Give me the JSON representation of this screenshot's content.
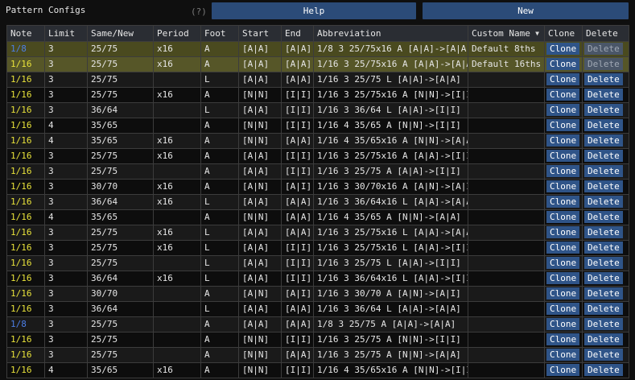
{
  "header": {
    "title": "Pattern Configs",
    "help_hint": "(?)",
    "help_label": "Help",
    "new_label": "New"
  },
  "table": {
    "columns": [
      "Note",
      "Limit",
      "Same/New",
      "Period",
      "Foot",
      "Start",
      "End",
      "Abbreviation",
      "Custom Name",
      "Clone",
      "Delete"
    ],
    "sort_icon": "sort-descending-triangle",
    "colors": {
      "note_yellow": "#e8e23a",
      "note_blue": "#4d7fe6",
      "default_row_highlight": "#4a4a1f",
      "button_bg": "#2f5488"
    },
    "rows": [
      {
        "note": "1/8",
        "limit": "3",
        "same_new": "25/75",
        "period": "x16",
        "foot": "A",
        "start": "[A|A]",
        "end": "[A|A]",
        "abbreviation": "1/8 3 25/75x16 A [A|A]->[A|A]",
        "custom_name": "Default 8ths",
        "clone": "Clone",
        "delete": "Delete",
        "is_default": true
      },
      {
        "note": "1/16",
        "limit": "3",
        "same_new": "25/75",
        "period": "x16",
        "foot": "A",
        "start": "[A|A]",
        "end": "[A|A]",
        "abbreviation": "1/16 3 25/75x16 A [A|A]->[A|A]",
        "custom_name": "Default 16ths",
        "clone": "Clone",
        "delete": "Delete",
        "is_default": true
      },
      {
        "note": "1/16",
        "limit": "3",
        "same_new": "25/75",
        "period": "",
        "foot": "L",
        "start": "[A|A]",
        "end": "[A|A]",
        "abbreviation": "1/16 3 25/75 L [A|A]->[A|A]",
        "custom_name": "",
        "clone": "Clone",
        "delete": "Delete"
      },
      {
        "note": "1/16",
        "limit": "3",
        "same_new": "25/75",
        "period": "x16",
        "foot": "A",
        "start": "[N|N]",
        "end": "[I|I]",
        "abbreviation": "1/16 3 25/75x16 A [N|N]->[I|I]",
        "custom_name": "",
        "clone": "Clone",
        "delete": "Delete"
      },
      {
        "note": "1/16",
        "limit": "3",
        "same_new": "36/64",
        "period": "",
        "foot": "L",
        "start": "[A|A]",
        "end": "[I|I]",
        "abbreviation": "1/16 3 36/64 L [A|A]->[I|I]",
        "custom_name": "",
        "clone": "Clone",
        "delete": "Delete"
      },
      {
        "note": "1/16",
        "limit": "4",
        "same_new": "35/65",
        "period": "",
        "foot": "A",
        "start": "[N|N]",
        "end": "[I|I]",
        "abbreviation": "1/16 4 35/65 A [N|N]->[I|I]",
        "custom_name": "",
        "clone": "Clone",
        "delete": "Delete"
      },
      {
        "note": "1/16",
        "limit": "4",
        "same_new": "35/65",
        "period": "x16",
        "foot": "A",
        "start": "[N|N]",
        "end": "[A|A]",
        "abbreviation": "1/16 4 35/65x16 A [N|N]->[A|A]",
        "custom_name": "",
        "clone": "Clone",
        "delete": "Delete"
      },
      {
        "note": "1/16",
        "limit": "3",
        "same_new": "25/75",
        "period": "x16",
        "foot": "A",
        "start": "[A|A]",
        "end": "[I|I]",
        "abbreviation": "1/16 3 25/75x16 A [A|A]->[I|I]",
        "custom_name": "",
        "clone": "Clone",
        "delete": "Delete"
      },
      {
        "note": "1/16",
        "limit": "3",
        "same_new": "25/75",
        "period": "",
        "foot": "A",
        "start": "[A|A]",
        "end": "[I|I]",
        "abbreviation": "1/16 3 25/75 A [A|A]->[I|I]",
        "custom_name": "",
        "clone": "Clone",
        "delete": "Delete"
      },
      {
        "note": "1/16",
        "limit": "3",
        "same_new": "30/70",
        "period": "x16",
        "foot": "A",
        "start": "[A|N]",
        "end": "[A|I]",
        "abbreviation": "1/16 3 30/70x16 A [A|N]->[A|I]",
        "custom_name": "",
        "clone": "Clone",
        "delete": "Delete"
      },
      {
        "note": "1/16",
        "limit": "3",
        "same_new": "36/64",
        "period": "x16",
        "foot": "L",
        "start": "[A|A]",
        "end": "[A|A]",
        "abbreviation": "1/16 3 36/64x16 L [A|A]->[A|A]",
        "custom_name": "",
        "clone": "Clone",
        "delete": "Delete"
      },
      {
        "note": "1/16",
        "limit": "4",
        "same_new": "35/65",
        "period": "",
        "foot": "A",
        "start": "[N|N]",
        "end": "[A|A]",
        "abbreviation": "1/16 4 35/65 A [N|N]->[A|A]",
        "custom_name": "",
        "clone": "Clone",
        "delete": "Delete"
      },
      {
        "note": "1/16",
        "limit": "3",
        "same_new": "25/75",
        "period": "x16",
        "foot": "L",
        "start": "[A|A]",
        "end": "[A|A]",
        "abbreviation": "1/16 3 25/75x16 L [A|A]->[A|A]",
        "custom_name": "",
        "clone": "Clone",
        "delete": "Delete"
      },
      {
        "note": "1/16",
        "limit": "3",
        "same_new": "25/75",
        "period": "x16",
        "foot": "L",
        "start": "[A|A]",
        "end": "[I|I]",
        "abbreviation": "1/16 3 25/75x16 L [A|A]->[I|I]",
        "custom_name": "",
        "clone": "Clone",
        "delete": "Delete"
      },
      {
        "note": "1/16",
        "limit": "3",
        "same_new": "25/75",
        "period": "",
        "foot": "L",
        "start": "[A|A]",
        "end": "[I|I]",
        "abbreviation": "1/16 3 25/75 L [A|A]->[I|I]",
        "custom_name": "",
        "clone": "Clone",
        "delete": "Delete"
      },
      {
        "note": "1/16",
        "limit": "3",
        "same_new": "36/64",
        "period": "x16",
        "foot": "L",
        "start": "[A|A]",
        "end": "[I|I]",
        "abbreviation": "1/16 3 36/64x16 L [A|A]->[I|I]",
        "custom_name": "",
        "clone": "Clone",
        "delete": "Delete"
      },
      {
        "note": "1/16",
        "limit": "3",
        "same_new": "30/70",
        "period": "",
        "foot": "A",
        "start": "[A|N]",
        "end": "[A|I]",
        "abbreviation": "1/16 3 30/70 A [A|N]->[A|I]",
        "custom_name": "",
        "clone": "Clone",
        "delete": "Delete"
      },
      {
        "note": "1/16",
        "limit": "3",
        "same_new": "36/64",
        "period": "",
        "foot": "L",
        "start": "[A|A]",
        "end": "[A|A]",
        "abbreviation": "1/16 3 36/64 L [A|A]->[A|A]",
        "custom_name": "",
        "clone": "Clone",
        "delete": "Delete"
      },
      {
        "note": "1/8",
        "limit": "3",
        "same_new": "25/75",
        "period": "",
        "foot": "A",
        "start": "[A|A]",
        "end": "[A|A]",
        "abbreviation": "1/8 3 25/75 A [A|A]->[A|A]",
        "custom_name": "",
        "clone": "Clone",
        "delete": "Delete"
      },
      {
        "note": "1/16",
        "limit": "3",
        "same_new": "25/75",
        "period": "",
        "foot": "A",
        "start": "[N|N]",
        "end": "[I|I]",
        "abbreviation": "1/16 3 25/75 A [N|N]->[I|I]",
        "custom_name": "",
        "clone": "Clone",
        "delete": "Delete"
      },
      {
        "note": "1/16",
        "limit": "3",
        "same_new": "25/75",
        "period": "",
        "foot": "A",
        "start": "[N|N]",
        "end": "[A|A]",
        "abbreviation": "1/16 3 25/75 A [N|N]->[A|A]",
        "custom_name": "",
        "clone": "Clone",
        "delete": "Delete"
      },
      {
        "note": "1/16",
        "limit": "4",
        "same_new": "35/65",
        "period": "x16",
        "foot": "A",
        "start": "[N|N]",
        "end": "[I|I]",
        "abbreviation": "1/16 4 35/65x16 A [N|N]->[I|I]",
        "custom_name": "",
        "clone": "Clone",
        "delete": "Delete"
      }
    ]
  }
}
